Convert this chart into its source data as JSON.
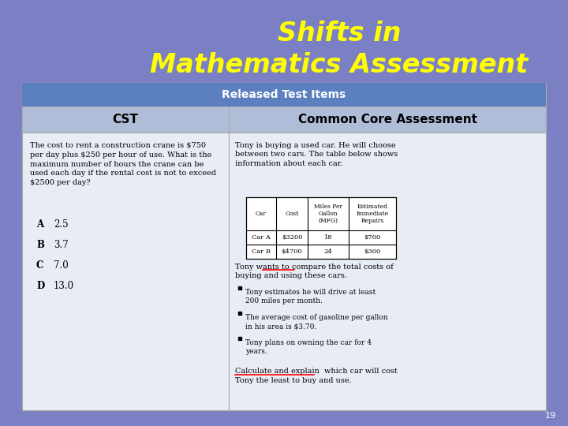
{
  "title_line1": "Shifts in",
  "title_line2": "Mathematics Assessment",
  "title_color": "#FFFF00",
  "bg_color": "#7B7FC4",
  "header_text": "Released Test Items",
  "header_bg": "#5B7FBF",
  "col1_header": "CST",
  "col2_header": "Common Core Assessment",
  "col_header_bg": "#B0BDD8",
  "content_bg": "#E8EDF5",
  "page_number": "19",
  "cst_question": "The cost to rent a construction crane is $750\nper day plus $250 per hour of use. What is the\nmaximum number of hours the crane can be\nused each day if the rental cost is not to exceed\n$2500 per day?",
  "cst_choices": [
    [
      "A",
      "2.5"
    ],
    [
      "B",
      "3.7"
    ],
    [
      "C",
      "7.0"
    ],
    [
      "D",
      "13.0"
    ]
  ],
  "cca_intro": "Tony is buying a used car. He will choose\nbetween two cars. The table below shows\ninformation about each car.",
  "cca_table_headers": [
    "Car",
    "Cost",
    "Miles Per\nGallon\n(MFG)",
    "Estimated\nImmediate\nRepairs"
  ],
  "cca_table_row1": [
    "Car A",
    "$3200",
    "18",
    "$700"
  ],
  "cca_table_row2": [
    "Car B",
    "$4700",
    "24",
    "$300"
  ],
  "cca_compare_text": "Tony wants to compare the total costs of\nbuying and using these cars.",
  "cca_bullets": [
    "Tony estimates he will drive at least\n200 miles per month.",
    "The average cost of gasoline per gallon\nin his area is $3.70.",
    "Tony plans on owning the car for 4\nyears."
  ],
  "cca_final_line1": "Calculate and explain  which car will cost",
  "cca_final_line2": "Tony the least to buy and use."
}
